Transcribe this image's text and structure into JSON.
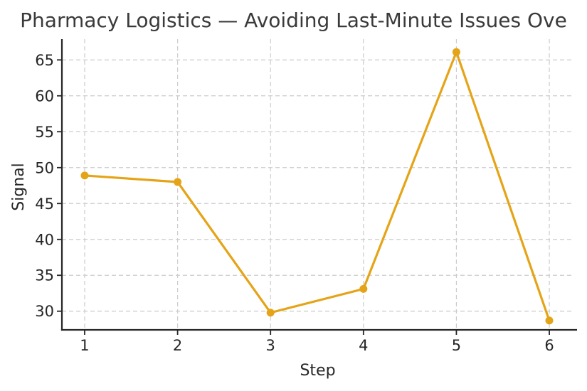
{
  "chart_data": {
    "type": "line",
    "title": "Pharmacy Logistics — Avoiding Last-Minute Issues Ove",
    "xlabel": "Step",
    "ylabel": "Signal",
    "x": [
      1,
      2,
      3,
      4,
      5,
      6
    ],
    "y": [
      48.9,
      48.0,
      29.8,
      33.1,
      66.1,
      28.7
    ],
    "series": [
      {
        "name": "Signal",
        "values": [
          48.9,
          48.0,
          29.8,
          33.1,
          66.1,
          28.7
        ]
      }
    ],
    "x_ticks": [
      1,
      2,
      3,
      4,
      5,
      6
    ],
    "y_ticks": [
      30,
      35,
      40,
      45,
      50,
      55,
      60,
      65
    ],
    "xlim": [
      0.755,
      6.26
    ],
    "ylim": [
      27.4,
      67.9
    ],
    "grid": true,
    "grid_style": "dashed",
    "legend": "none",
    "marker": "circle",
    "colors": {
      "line": "#E5A417",
      "marker": "#E5A417",
      "grid": "#CCCCCC",
      "axis": "#262626",
      "tick_label": "#262626",
      "title": "#3A3A3A",
      "background": "#FFFFFF"
    }
  }
}
